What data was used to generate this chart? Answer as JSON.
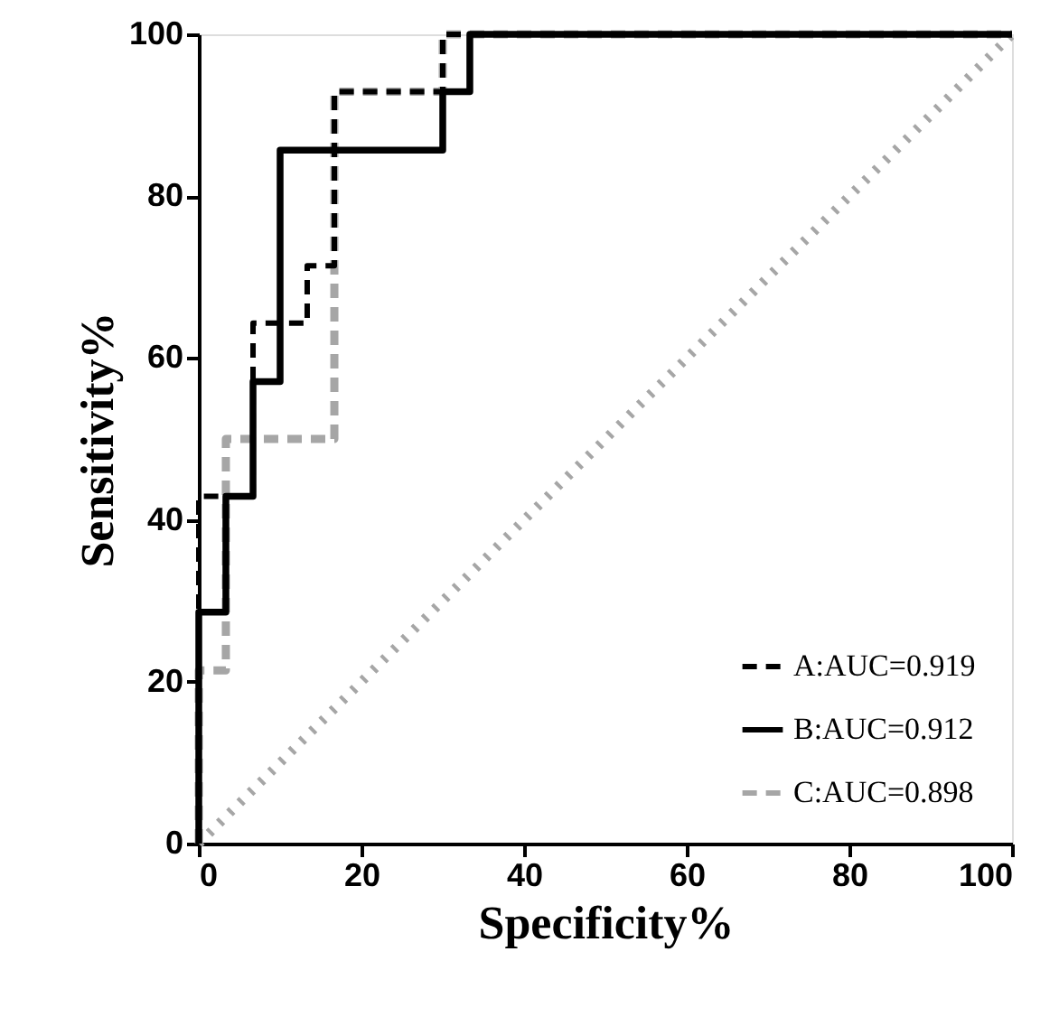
{
  "chart_data": {
    "type": "step",
    "xlabel": "Specificity%",
    "ylabel": "Sensitivity%",
    "xlim": [
      0,
      100
    ],
    "ylim": [
      0,
      100
    ],
    "xticks": [
      0,
      20,
      40,
      60,
      80,
      100
    ],
    "yticks": [
      0,
      20,
      40,
      60,
      80,
      100
    ],
    "grid": false,
    "legend": "bottom right",
    "marker": "none",
    "series": [
      {
        "name": "A:AUC=0.919",
        "color": "#000000",
        "line_style": "dashed",
        "x": [
          0,
          0,
          6.67,
          13.33,
          16.67,
          30,
          100
        ],
        "values": [
          0,
          42.9,
          64.3,
          71.4,
          92.9,
          100,
          100
        ]
      },
      {
        "name": "B:AUC=0.912",
        "color": "#000000",
        "line_style": "solid",
        "x": [
          0,
          0,
          3.33,
          6.67,
          10,
          30,
          33.33,
          100
        ],
        "values": [
          0,
          28.6,
          42.9,
          57.1,
          85.7,
          92.9,
          100,
          100
        ]
      },
      {
        "name": "C:AUC=0.898",
        "color": "#a6a6a6",
        "line_style": "dashed",
        "x": [
          0,
          0,
          3.33,
          16.67,
          30,
          100
        ],
        "values": [
          0,
          21.4,
          50,
          92.9,
          100,
          100
        ]
      },
      {
        "type": "line",
        "color": "#a6a6a6",
        "line_style": "dotted",
        "x": [
          0,
          100
        ],
        "values": [
          0,
          100
        ]
      }
    ]
  }
}
